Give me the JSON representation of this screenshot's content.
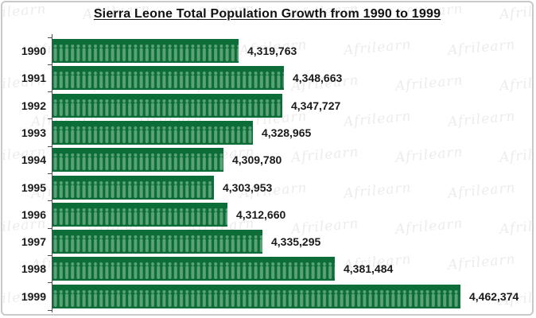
{
  "page": {
    "background_color": "#ffffff",
    "border_color": "#c9c9c9"
  },
  "watermark": {
    "text": "Afrilearn",
    "color": "#ececec"
  },
  "chart_data": {
    "type": "bar",
    "orientation": "horizontal",
    "title": "Sierra Leone Total Population Growth from 1990 to 1999",
    "xlabel": "",
    "ylabel": "",
    "categories": [
      "1990",
      "1991",
      "1992",
      "1993",
      "1994",
      "1995",
      "1996",
      "1997",
      "1998",
      "1999"
    ],
    "values": [
      4319763,
      4348663,
      4347727,
      4328965,
      4309780,
      4303953,
      4312660,
      4335295,
      4381484,
      4462374
    ],
    "value_labels": [
      "4,319,763",
      "4,348,663",
      "4,347,727",
      "4,328,965",
      "4,309,780",
      "4,303,953",
      "4,312,660",
      "4,335,295",
      "4,381,484",
      "4,462,374"
    ],
    "xlim": [
      4200000,
      4510000
    ],
    "grid": false,
    "legend": null,
    "bar_style": "pictogram-people",
    "bar_color": "#0d6d38",
    "pictogram_color": "#5aa377",
    "label_color": "#1a1a1a",
    "axis_color": "#4d4d4d"
  }
}
